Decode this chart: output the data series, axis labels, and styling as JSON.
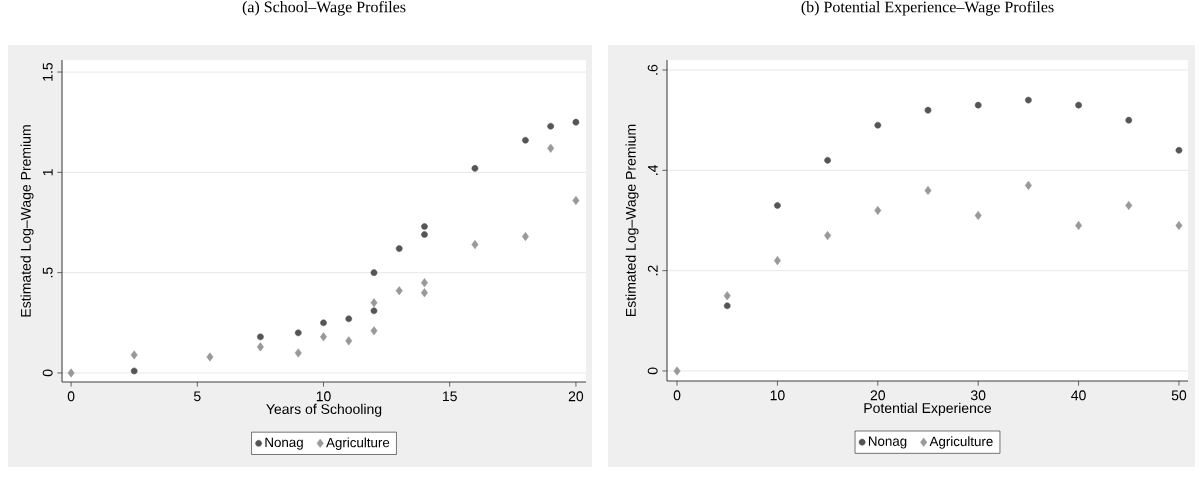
{
  "chart_data": [
    {
      "type": "scatter",
      "title": "(a) School–Wage Profiles",
      "xlabel": "Years of Schooling",
      "ylabel": "Estimated Log–Wage Premium",
      "xlim": [
        -0.36,
        20.4
      ],
      "ylim": [
        -0.045,
        1.56
      ],
      "xticks": [
        0,
        5,
        10,
        15,
        20
      ],
      "yticks": [
        0,
        {
          "value": 0.5,
          "label": ".5"
        },
        1,
        1.5
      ],
      "grid": "y",
      "legend": "bottom",
      "series": [
        {
          "name": "Nonag",
          "color": "#555555",
          "marker": "circle",
          "x": [
            2.5,
            7.5,
            9,
            10,
            11,
            12,
            12,
            13,
            14,
            14,
            16,
            18,
            19,
            20
          ],
          "values": [
            0.01,
            0.18,
            0.2,
            0.25,
            0.27,
            0.5,
            0.31,
            0.62,
            0.73,
            0.69,
            1.02,
            1.16,
            1.23,
            1.25
          ]
        },
        {
          "name": "Agriculture",
          "color": "#999999",
          "marker": "diamond",
          "x": [
            0,
            2.5,
            5.5,
            7.5,
            9,
            10,
            11,
            12,
            12,
            13,
            14,
            14,
            16,
            18,
            19,
            20
          ],
          "values": [
            0,
            0.09,
            0.08,
            0.13,
            0.1,
            0.18,
            0.16,
            0.35,
            0.21,
            0.41,
            0.45,
            0.4,
            0.64,
            0.68,
            1.12,
            0.86
          ]
        }
      ]
    },
    {
      "type": "scatter",
      "title": "(b) Potential Experience–Wage Profiles",
      "xlabel": "Potential Experience",
      "ylabel": "Estimated Log–Wage Premium",
      "xlim": [
        -1.0,
        50.9
      ],
      "ylim": [
        -0.02,
        0.62
      ],
      "xticks": [
        0,
        10,
        20,
        30,
        40,
        50
      ],
      "yticks": [
        0,
        {
          "value": 0.2,
          "label": ".2"
        },
        {
          "value": 0.4,
          "label": ".4"
        },
        {
          "value": 0.6,
          "label": ".6"
        }
      ],
      "grid": "y",
      "legend": "bottom",
      "series": [
        {
          "name": "Nonag",
          "color": "#555555",
          "marker": "circle",
          "x": [
            5,
            10,
            15,
            20,
            25,
            30,
            35,
            40,
            45,
            50
          ],
          "values": [
            0.13,
            0.33,
            0.42,
            0.49,
            0.52,
            0.53,
            0.54,
            0.53,
            0.5,
            0.44
          ]
        },
        {
          "name": "Agriculture",
          "color": "#999999",
          "marker": "diamond",
          "x": [
            0,
            5,
            10,
            15,
            20,
            25,
            30,
            35,
            40,
            45,
            50
          ],
          "values": [
            0,
            0.15,
            0.22,
            0.27,
            0.32,
            0.36,
            0.31,
            0.37,
            0.29,
            0.33,
            0.29
          ]
        }
      ]
    }
  ]
}
